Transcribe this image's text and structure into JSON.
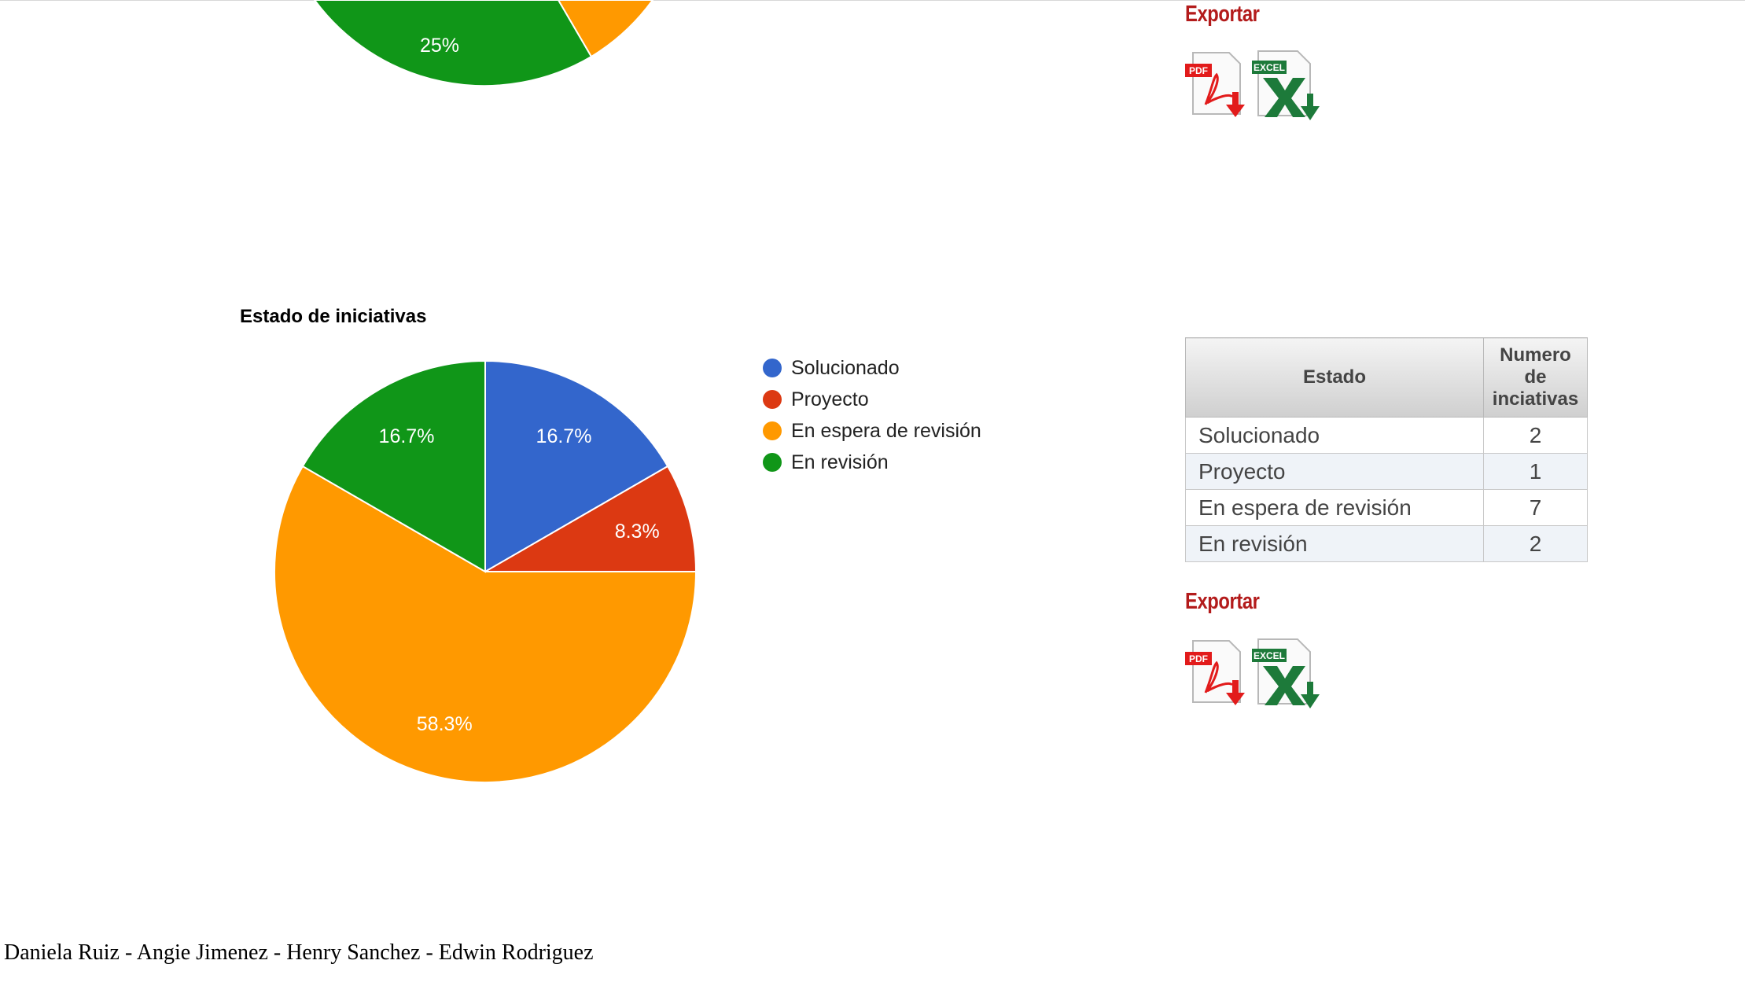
{
  "colors": {
    "blue": "#3366cc",
    "red": "#dc3912",
    "orange": "#ff9900",
    "green": "#109618",
    "export_red": "#b31b1b"
  },
  "top_chart": {
    "visible_labels": [
      "25%"
    ]
  },
  "top_export": {
    "title": "Exportar",
    "pdf_icon": "pdf-download-icon",
    "excel_icon": "excel-download-icon"
  },
  "chart_data": {
    "type": "pie",
    "title": "Estado de iniciativas",
    "categories": [
      "Solucionado",
      "Proyecto",
      "En espera de revisión",
      "En revisión"
    ],
    "values": [
      2,
      1,
      7,
      2
    ],
    "percent_labels": [
      "16.7%",
      "8.3%",
      "58.3%",
      "16.7%"
    ],
    "colors": [
      "#3366cc",
      "#dc3912",
      "#ff9900",
      "#109618"
    ],
    "legend_position": "right"
  },
  "table": {
    "headers": [
      "Estado",
      "Numero de inciativas"
    ],
    "rows": [
      {
        "estado": "Solucionado",
        "numero": "2"
      },
      {
        "estado": "Proyecto",
        "numero": "1"
      },
      {
        "estado": "En espera de revisión",
        "numero": "7"
      },
      {
        "estado": "En revisión",
        "numero": "2"
      }
    ]
  },
  "bottom_export": {
    "title": "Exportar",
    "pdf_icon": "pdf-download-icon",
    "excel_icon": "excel-download-icon"
  },
  "footer": {
    "authors": "Daniela Ruiz - Angie Jimenez - Henry Sanchez - Edwin Rodriguez"
  }
}
